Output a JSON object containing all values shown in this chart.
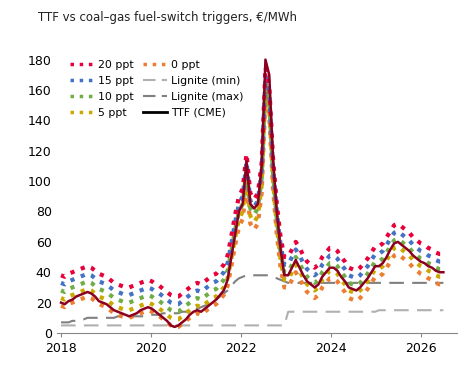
{
  "title": "TTF vs coal–gas fuel-switch triggers, €/MWh",
  "xlim": [
    2017.9,
    2026.8
  ],
  "ylim": [
    0,
    190
  ],
  "yticks": [
    0,
    20,
    40,
    60,
    80,
    100,
    120,
    140,
    160,
    180
  ],
  "xticks": [
    2018,
    2020,
    2022,
    2024,
    2026
  ],
  "series": {
    "ttf_cme": {
      "label": "TTF (CME)",
      "color": "#8B0020",
      "linestyle": "solid",
      "linewidth": 1.8
    },
    "ppt20": {
      "label": "20 ppt",
      "color": "#E8003C",
      "linestyle": "dotted",
      "linewidth": 2.2
    },
    "ppt15": {
      "label": "15 ppt",
      "color": "#4472C4",
      "linestyle": "dotted",
      "linewidth": 2.2
    },
    "ppt10": {
      "label": "10 ppt",
      "color": "#70AD47",
      "linestyle": "dotted",
      "linewidth": 2.2
    },
    "ppt5": {
      "label": "5 ppt",
      "color": "#C9A800",
      "linestyle": "dotted",
      "linewidth": 2.2
    },
    "ppt0": {
      "label": "0 ppt",
      "color": "#ED7D31",
      "linestyle": "dotted",
      "linewidth": 2.2
    },
    "lignite_max": {
      "label": "Lignite (max)",
      "color": "#808080",
      "linestyle": "dashed",
      "linewidth": 1.5
    },
    "lignite_min": {
      "label": "Lignite (min)",
      "color": "#B0B0B0",
      "linestyle": "dashed",
      "linewidth": 1.5
    }
  },
  "background_color": "#FFFFFF",
  "ttf_values": [
    20,
    19,
    21,
    22,
    24,
    25,
    26,
    27,
    26,
    24,
    21,
    20,
    19,
    17,
    15,
    14,
    13,
    12,
    11,
    12,
    13,
    15,
    16,
    17,
    16,
    14,
    12,
    10,
    8,
    5,
    4,
    5,
    7,
    9,
    12,
    14,
    15,
    14,
    16,
    18,
    20,
    22,
    25,
    28,
    35,
    50,
    65,
    80,
    85,
    113,
    85,
    82,
    85,
    110,
    180,
    170,
    115,
    80,
    55,
    38,
    38,
    43,
    48,
    43,
    38,
    34,
    32,
    30,
    32,
    37,
    40,
    43,
    43,
    41,
    37,
    34,
    30,
    29,
    28,
    30,
    33,
    36,
    40,
    44,
    44,
    46,
    50,
    55,
    59,
    60,
    58,
    56,
    54,
    51,
    49,
    47,
    46,
    44,
    43,
    41,
    40,
    40
  ],
  "coal_switch_base": [
    18,
    17,
    19,
    20,
    21,
    22,
    23,
    24,
    23,
    21,
    19,
    18,
    17,
    15,
    13,
    12,
    11,
    10,
    10,
    11,
    12,
    13,
    14,
    15,
    14,
    12,
    11,
    9,
    7,
    5,
    4,
    4,
    6,
    8,
    10,
    12,
    13,
    12,
    14,
    16,
    18,
    19,
    22,
    25,
    31,
    44,
    58,
    70,
    75,
    98,
    72,
    68,
    72,
    92,
    155,
    143,
    95,
    65,
    43,
    30,
    30,
    35,
    40,
    36,
    31,
    27,
    25,
    23,
    25,
    30,
    33,
    36,
    36,
    34,
    30,
    27,
    23,
    22,
    21,
    23,
    26,
    29,
    33,
    37,
    37,
    39,
    43,
    47,
    51,
    52,
    50,
    48,
    46,
    43,
    41,
    39,
    38,
    36,
    35,
    33,
    32,
    32
  ],
  "lignite_max_values": [
    7,
    7,
    7,
    8,
    8,
    9,
    9,
    10,
    10,
    10,
    10,
    10,
    10,
    10,
    10,
    11,
    11,
    11,
    11,
    11,
    11,
    11,
    11,
    12,
    12,
    12,
    12,
    13,
    13,
    13,
    13,
    13,
    14,
    14,
    14,
    15,
    16,
    17,
    18,
    19,
    20,
    22,
    24,
    26,
    28,
    31,
    34,
    36,
    37,
    38,
    38,
    38,
    38,
    38,
    38,
    38,
    37,
    36,
    35,
    34,
    33,
    33,
    33,
    33,
    33,
    33,
    33,
    33,
    33,
    33,
    33,
    33,
    33,
    33,
    33,
    33,
    33,
    33,
    33,
    33,
    33,
    33,
    33,
    33,
    33,
    33,
    33,
    33,
    33,
    33,
    33,
    33,
    33,
    33,
    33,
    33,
    33,
    33,
    33,
    33,
    33,
    33
  ],
  "lignite_min_values": [
    5,
    5,
    5,
    5,
    5,
    5,
    5,
    5,
    5,
    5,
    5,
    5,
    5,
    5,
    5,
    5,
    5,
    5,
    5,
    5,
    5,
    5,
    5,
    5,
    5,
    5,
    5,
    5,
    5,
    5,
    5,
    5,
    5,
    5,
    5,
    5,
    5,
    5,
    5,
    5,
    5,
    5,
    5,
    5,
    5,
    5,
    5,
    5,
    5,
    5,
    5,
    5,
    5,
    5,
    5,
    5,
    5,
    5,
    5,
    5,
    14,
    14,
    14,
    14,
    14,
    14,
    14,
    14,
    14,
    14,
    14,
    14,
    14,
    14,
    14,
    14,
    14,
    14,
    14,
    14,
    14,
    14,
    14,
    14,
    15,
    15,
    15,
    15,
    15,
    15,
    15,
    15,
    15,
    15,
    15,
    15,
    15,
    15,
    15,
    15,
    15,
    15
  ]
}
